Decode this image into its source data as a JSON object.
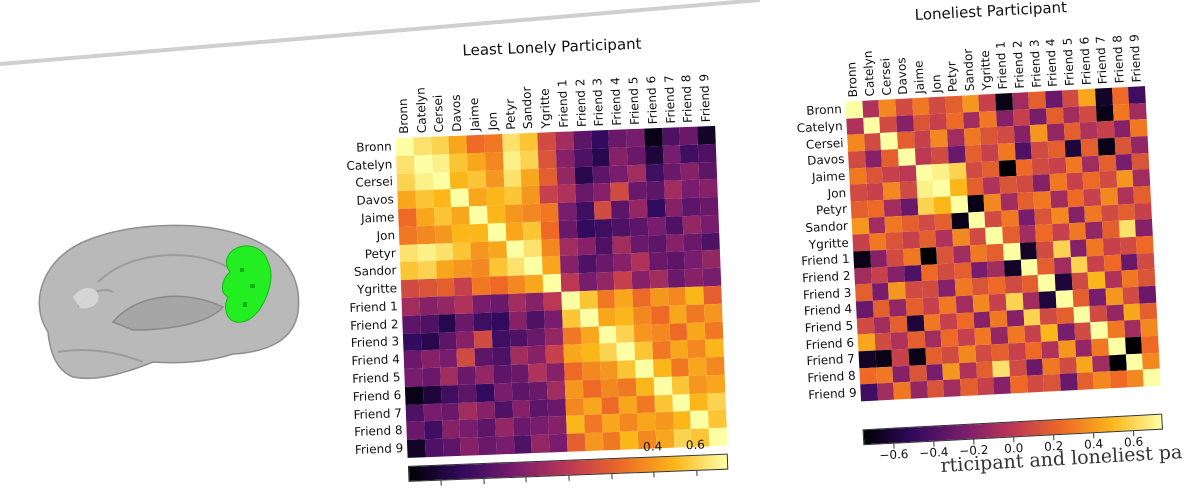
{
  "figure": {
    "caption_fragment": "rticipant and loneliest pa",
    "brain_roi_color": "#22ee22",
    "brain_surface_color": "#b9b9b9"
  },
  "colormap": {
    "name": "inferno",
    "stops": [
      "#000004",
      "#320a5e",
      "#781c6d",
      "#bc3754",
      "#ed6925",
      "#fbb61a",
      "#fcffa4"
    ]
  },
  "chart_data": [
    {
      "type": "heatmap",
      "title": "Least Lonely Participant",
      "labels": [
        "Bronn",
        "Catelyn",
        "Cersei",
        "Davos",
        "Jaime",
        "Jon",
        "Petyr",
        "Sandor",
        "Ygritte",
        "Friend 1",
        "Friend 2",
        "Friend 3",
        "Friend 4",
        "Friend 5",
        "Friend 6",
        "Friend 7",
        "Friend 8",
        "Friend 9"
      ],
      "colorbar": {
        "range": [
          -0.75,
          0.75
        ],
        "ticks": [
          -0.6,
          -0.4,
          -0.2,
          0.0,
          0.2,
          0.4,
          0.6
        ],
        "visible_tick_labels": [
          "0.4",
          "0.6"
        ]
      },
      "values": [
        [
          0.75,
          0.65,
          0.6,
          0.45,
          0.25,
          0.3,
          0.65,
          0.55,
          0.1,
          -0.1,
          -0.35,
          -0.5,
          -0.3,
          -0.25,
          -0.7,
          -0.4,
          -0.3,
          -0.65
        ],
        [
          0.65,
          0.75,
          0.7,
          0.55,
          0.45,
          0.35,
          0.7,
          0.6,
          0.15,
          -0.2,
          -0.4,
          -0.55,
          -0.2,
          -0.3,
          -0.6,
          -0.25,
          -0.45,
          -0.4
        ],
        [
          0.6,
          0.7,
          0.75,
          0.5,
          0.55,
          0.4,
          0.65,
          0.45,
          0.2,
          -0.15,
          -0.55,
          -0.35,
          -0.25,
          -0.1,
          -0.45,
          -0.3,
          -0.2,
          -0.35
        ],
        [
          0.45,
          0.55,
          0.5,
          0.75,
          0.45,
          0.5,
          0.55,
          0.4,
          0.05,
          -0.05,
          -0.3,
          -0.2,
          0.1,
          -0.3,
          -0.35,
          -0.1,
          -0.25,
          -0.2
        ],
        [
          0.25,
          0.45,
          0.55,
          0.45,
          0.75,
          0.5,
          0.4,
          0.35,
          0.3,
          -0.25,
          -0.45,
          0.1,
          -0.35,
          -0.15,
          -0.5,
          -0.2,
          -0.35,
          -0.3
        ],
        [
          0.3,
          0.35,
          0.4,
          0.5,
          0.5,
          0.75,
          0.45,
          0.55,
          0.25,
          -0.3,
          -0.5,
          -0.45,
          -0.4,
          -0.35,
          -0.25,
          -0.4,
          -0.15,
          -0.25
        ],
        [
          0.65,
          0.7,
          0.65,
          0.55,
          0.4,
          0.45,
          0.75,
          0.65,
          0.35,
          -0.1,
          -0.2,
          -0.4,
          -0.1,
          -0.3,
          -0.35,
          -0.2,
          -0.3,
          -0.4
        ],
        [
          0.55,
          0.6,
          0.45,
          0.4,
          0.35,
          0.55,
          0.65,
          0.75,
          0.45,
          -0.2,
          -0.4,
          -0.3,
          -0.2,
          -0.05,
          -0.3,
          -0.35,
          -0.25,
          -0.15
        ],
        [
          0.1,
          0.15,
          0.2,
          0.05,
          0.3,
          0.25,
          0.35,
          0.45,
          0.75,
          0.0,
          -0.25,
          -0.15,
          0.05,
          -0.2,
          -0.1,
          -0.3,
          -0.2,
          -0.25
        ],
        [
          -0.1,
          -0.2,
          -0.15,
          -0.05,
          -0.25,
          -0.3,
          -0.1,
          -0.2,
          0.0,
          0.75,
          0.55,
          0.3,
          0.45,
          0.25,
          0.4,
          0.35,
          0.5,
          0.2
        ],
        [
          -0.35,
          -0.4,
          -0.55,
          -0.3,
          -0.45,
          -0.5,
          -0.2,
          -0.4,
          -0.25,
          0.55,
          0.75,
          0.45,
          0.5,
          0.35,
          0.25,
          0.45,
          0.3,
          0.4
        ],
        [
          -0.5,
          -0.55,
          -0.35,
          -0.2,
          0.1,
          -0.45,
          -0.4,
          -0.3,
          -0.15,
          0.3,
          0.45,
          0.75,
          0.6,
          0.4,
          0.35,
          0.25,
          0.45,
          0.3
        ],
        [
          -0.3,
          -0.2,
          -0.25,
          0.1,
          -0.35,
          -0.4,
          -0.1,
          -0.2,
          0.05,
          0.45,
          0.5,
          0.6,
          0.75,
          0.55,
          0.3,
          0.45,
          0.35,
          0.5
        ],
        [
          -0.25,
          -0.3,
          -0.1,
          -0.3,
          -0.15,
          -0.35,
          -0.3,
          -0.05,
          -0.2,
          0.25,
          0.35,
          0.4,
          0.55,
          0.75,
          0.5,
          0.3,
          0.45,
          0.35
        ],
        [
          -0.7,
          -0.6,
          -0.45,
          -0.35,
          -0.5,
          -0.25,
          -0.35,
          -0.3,
          -0.1,
          0.4,
          0.25,
          0.35,
          0.3,
          0.5,
          0.75,
          0.55,
          0.4,
          0.45
        ],
        [
          -0.4,
          -0.25,
          -0.3,
          -0.1,
          -0.2,
          -0.4,
          -0.2,
          -0.35,
          -0.3,
          0.35,
          0.45,
          0.25,
          0.45,
          0.3,
          0.55,
          0.75,
          0.5,
          0.6
        ],
        [
          -0.3,
          -0.45,
          -0.2,
          -0.25,
          -0.35,
          -0.15,
          -0.3,
          -0.25,
          -0.2,
          0.5,
          0.3,
          0.45,
          0.35,
          0.45,
          0.4,
          0.5,
          0.75,
          0.55
        ],
        [
          -0.65,
          -0.4,
          -0.35,
          -0.2,
          -0.3,
          -0.25,
          -0.4,
          -0.15,
          -0.25,
          0.2,
          0.4,
          0.3,
          0.5,
          0.35,
          0.45,
          0.6,
          0.55,
          0.75
        ]
      ]
    },
    {
      "type": "heatmap",
      "title": "Loneliest Participant",
      "labels": [
        "Bronn",
        "Catelyn",
        "Cersei",
        "Davos",
        "Jaime",
        "Jon",
        "Petyr",
        "Sandor",
        "Ygritte",
        "Friend 1",
        "Friend 2",
        "Friend 3",
        "Friend 4",
        "Friend 5",
        "Friend 6",
        "Friend 7",
        "Friend 8",
        "Friend 9"
      ],
      "colorbar": {
        "range": [
          -0.75,
          0.75
        ],
        "ticks": [
          -0.6,
          -0.4,
          -0.2,
          0.0,
          0.2,
          0.4,
          0.6
        ],
        "visible_tick_labels": [
          "−0.6",
          "−0.4",
          "−0.2",
          "0.0",
          "0.2",
          "0.4",
          "0.6"
        ]
      },
      "values": [
        [
          0.75,
          -0.05,
          0.35,
          0.1,
          0.3,
          0.1,
          0.2,
          0.4,
          0.05,
          -0.7,
          -0.1,
          0.2,
          -0.3,
          0.1,
          0.45,
          -0.65,
          0.25,
          -0.45
        ],
        [
          -0.05,
          0.75,
          0.1,
          -0.2,
          0.15,
          0.05,
          0.25,
          -0.1,
          0.3,
          -0.2,
          0.05,
          -0.25,
          0.2,
          -0.1,
          0.1,
          -0.7,
          0.3,
          -0.1
        ],
        [
          0.35,
          0.1,
          0.75,
          0.2,
          0.05,
          0.35,
          -0.1,
          0.3,
          0.15,
          0.1,
          -0.2,
          0.4,
          -0.15,
          0.2,
          -0.05,
          0.05,
          -0.2,
          0.3
        ],
        [
          0.1,
          -0.2,
          0.2,
          0.75,
          0.0,
          0.1,
          -0.3,
          0.2,
          0.05,
          0.3,
          -0.4,
          0.1,
          0.2,
          -0.6,
          0.2,
          -0.7,
          0.15,
          -0.15
        ],
        [
          0.3,
          0.15,
          0.05,
          0.0,
          0.75,
          0.7,
          0.6,
          0.1,
          0.2,
          -0.8,
          0.25,
          0.1,
          0.05,
          0.3,
          -0.1,
          0.2,
          -0.25,
          0.15
        ],
        [
          0.1,
          0.05,
          0.35,
          0.1,
          0.7,
          0.75,
          0.5,
          0.2,
          -0.05,
          0.15,
          0.1,
          -0.2,
          0.3,
          0.05,
          0.25,
          0.1,
          0.4,
          -0.1
        ],
        [
          0.2,
          0.25,
          -0.1,
          -0.3,
          0.6,
          0.5,
          0.75,
          -0.7,
          0.35,
          -0.1,
          0.2,
          0.3,
          -0.1,
          0.25,
          0.05,
          0.35,
          -0.05,
          0.2
        ],
        [
          0.4,
          -0.1,
          0.3,
          0.2,
          0.1,
          0.2,
          -0.7,
          0.75,
          0.1,
          0.3,
          -0.25,
          0.15,
          0.35,
          -0.2,
          0.3,
          0.1,
          0.2,
          0.05
        ],
        [
          0.05,
          0.3,
          0.15,
          0.05,
          0.2,
          -0.05,
          0.35,
          0.1,
          0.75,
          0.2,
          -0.1,
          0.25,
          0.05,
          0.3,
          -0.15,
          0.2,
          0.65,
          -0.2
        ],
        [
          -0.7,
          -0.2,
          0.1,
          0.3,
          -0.8,
          0.15,
          -0.1,
          0.3,
          0.2,
          0.75,
          -0.65,
          0.1,
          0.6,
          -0.2,
          0.3,
          0.05,
          0.1,
          0.25
        ],
        [
          -0.1,
          0.05,
          -0.2,
          -0.4,
          0.25,
          0.1,
          0.2,
          -0.25,
          -0.1,
          -0.65,
          0.75,
          0.2,
          -0.1,
          0.6,
          0.05,
          0.25,
          -0.3,
          0.1
        ],
        [
          0.2,
          -0.25,
          0.4,
          0.1,
          0.1,
          -0.2,
          0.3,
          0.15,
          0.25,
          0.1,
          0.2,
          0.75,
          -0.6,
          0.1,
          0.5,
          -0.05,
          0.3,
          0.15
        ],
        [
          -0.3,
          0.2,
          -0.15,
          0.2,
          0.05,
          0.3,
          -0.1,
          0.35,
          0.05,
          0.6,
          -0.1,
          -0.6,
          0.75,
          0.2,
          -0.25,
          0.4,
          0.1,
          -0.3
        ],
        [
          0.1,
          -0.1,
          0.2,
          -0.6,
          0.3,
          0.05,
          0.25,
          -0.2,
          0.3,
          -0.2,
          0.6,
          0.1,
          0.2,
          0.75,
          0.1,
          -0.15,
          0.45,
          0.2
        ],
        [
          0.45,
          0.1,
          -0.05,
          0.2,
          -0.1,
          0.25,
          0.05,
          0.3,
          -0.15,
          0.3,
          0.05,
          0.5,
          -0.25,
          0.1,
          0.75,
          0.3,
          -0.1,
          0.35
        ],
        [
          -0.65,
          -0.7,
          0.05,
          -0.7,
          0.2,
          0.1,
          0.35,
          0.1,
          0.2,
          0.05,
          0.25,
          -0.05,
          0.4,
          -0.15,
          0.3,
          0.75,
          -0.75,
          0.25
        ],
        [
          0.25,
          0.3,
          -0.2,
          0.15,
          -0.25,
          0.4,
          -0.05,
          0.2,
          0.65,
          0.1,
          -0.3,
          0.3,
          0.1,
          0.45,
          -0.1,
          -0.75,
          0.75,
          0.35
        ],
        [
          -0.45,
          -0.1,
          0.3,
          -0.15,
          0.15,
          -0.1,
          0.2,
          0.05,
          -0.2,
          0.25,
          0.1,
          0.15,
          -0.3,
          0.2,
          0.35,
          0.25,
          0.35,
          0.75
        ]
      ]
    }
  ]
}
